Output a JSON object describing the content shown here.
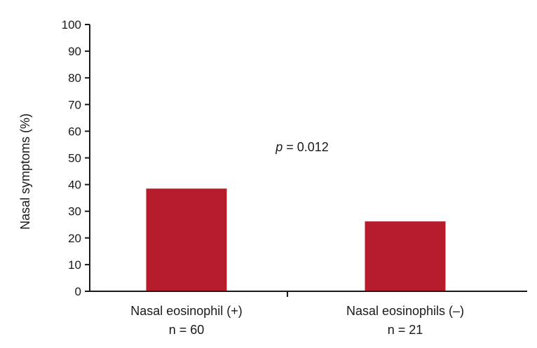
{
  "chart_data": {
    "type": "bar",
    "categories": [
      "Nasal eosinophil (+)",
      "Nasal eosinophils (–)"
    ],
    "category_sublabels": [
      "n = 60",
      "n = 21"
    ],
    "values": [
      38.5,
      26.2
    ],
    "ylabel": "Nasal symptoms (%)",
    "xlabel": "",
    "ylim": [
      0,
      100
    ],
    "yticks": [
      0,
      10,
      20,
      30,
      40,
      50,
      60,
      70,
      80,
      90,
      100
    ],
    "annotation": {
      "prefix": "p",
      "text": " = 0.012"
    },
    "bar_color": "#b71c2c",
    "grid": false
  }
}
